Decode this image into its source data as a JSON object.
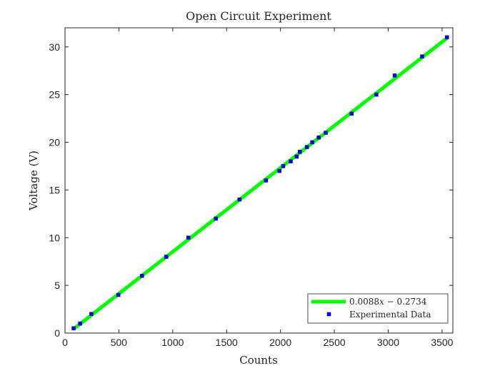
{
  "chart_data": {
    "type": "scatter",
    "title": "Open Circuit Experiment",
    "xlabel": "Counts",
    "ylabel": "Voltage (V)",
    "xlim": [
      0,
      3600
    ],
    "ylim": [
      0,
      32
    ],
    "xticks": [
      0,
      500,
      1000,
      1500,
      2000,
      2500,
      3000,
      3500
    ],
    "yticks": [
      0,
      5,
      10,
      15,
      20,
      25,
      30
    ],
    "grid": false,
    "legend_position": "bottom-right",
    "series": [
      {
        "name": "0.0088x − 0.2734",
        "kind": "fit-line",
        "color": "#00ff00",
        "slope": 0.0088,
        "intercept": -0.2734,
        "x_range": [
          80,
          3545
        ]
      },
      {
        "name": "Experimental Data",
        "kind": "markers",
        "color": "#0000ff",
        "marker_edge_color": "#1a1a80",
        "x": [
          80,
          140,
          245,
          495,
          715,
          940,
          1145,
          1400,
          1620,
          1865,
          1990,
          2025,
          2095,
          2150,
          2180,
          2245,
          2295,
          2355,
          2420,
          2660,
          2890,
          3060,
          3315,
          3545
        ],
        "y": [
          0.5,
          1,
          2,
          4,
          6,
          8,
          10,
          12,
          14,
          16,
          17,
          17.5,
          18,
          18.5,
          19,
          19.5,
          20,
          20.5,
          21,
          23,
          25,
          27,
          29,
          31
        ]
      }
    ],
    "legend_entries": [
      {
        "lead": "0.0088",
        "var": "x",
        "rest": " − 0.2734"
      },
      {
        "text": "Experimental Data"
      }
    ]
  }
}
